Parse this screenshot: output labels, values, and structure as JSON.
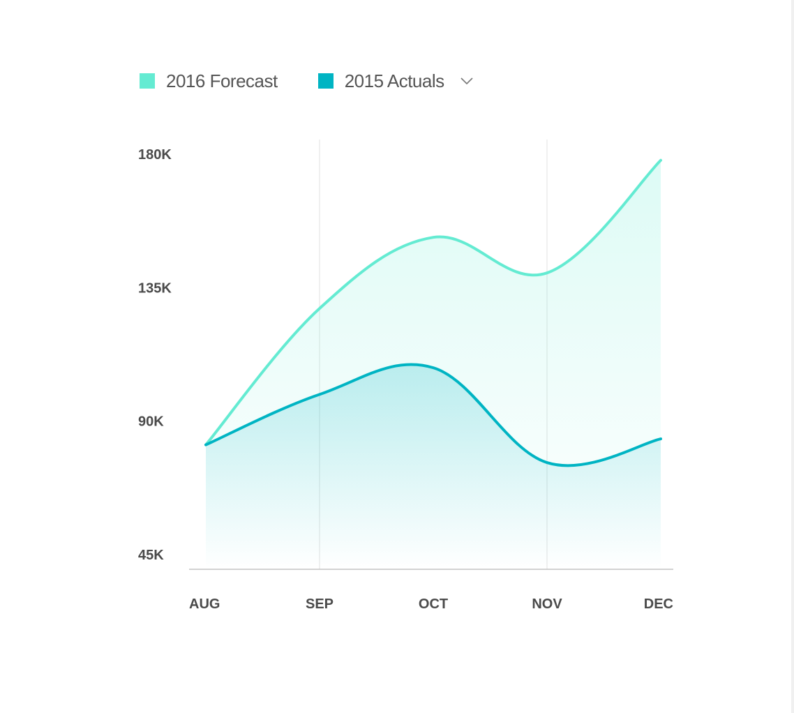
{
  "legend": {
    "items": [
      {
        "label": "2016 Forecast",
        "color": "#64EBD2"
      },
      {
        "label": "2015 Actuals",
        "color": "#00B4C3"
      }
    ],
    "dropdown_icon": "chevron-down-icon"
  },
  "chart_data": {
    "type": "area",
    "categories": [
      "AUG",
      "SEP",
      "OCT",
      "NOV",
      "DEC"
    ],
    "series": [
      {
        "name": "2016 Forecast",
        "color": "#64EBD2",
        "values": [
          82000,
          128000,
          152000,
          140000,
          178000
        ]
      },
      {
        "name": "2015 Actuals",
        "color": "#00B4C3",
        "values": [
          82000,
          99000,
          108000,
          76000,
          84000
        ]
      }
    ],
    "yticks": [
      {
        "value": 180000,
        "label": "180K"
      },
      {
        "value": 135000,
        "label": "135K"
      },
      {
        "value": 90000,
        "label": "90K"
      },
      {
        "value": 45000,
        "label": "45K"
      }
    ],
    "grid_vertical_at": [
      "SEP",
      "NOV"
    ],
    "ylim": [
      40000,
      185000
    ],
    "xlabel": "",
    "ylabel": "",
    "title": ""
  }
}
